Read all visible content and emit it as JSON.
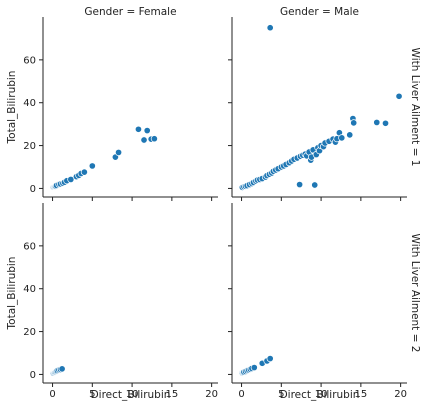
{
  "chart_data": {
    "type": "scatter",
    "facet": {
      "columns": [
        "Gender = Female",
        "Gender = Male"
      ],
      "rows": [
        "With Liver Ailment = 1",
        "With Liver Ailment = 2"
      ]
    },
    "xlabel": "Direct_Bilirubin",
    "ylabel": "Total_Bilirubin",
    "xlim": [
      -1.2,
      20.8
    ],
    "ylim": [
      -4,
      80
    ],
    "xticks": [
      "0",
      "5",
      "10",
      "15",
      "20"
    ],
    "yticks": [
      "0",
      "20",
      "40",
      "60"
    ],
    "marker_color": "#1f77b4",
    "panels": [
      {
        "column": "Gender = Female",
        "row": "With Liver Ailment = 1",
        "points": [
          [
            0.1,
            0.6
          ],
          [
            0.2,
            0.8
          ],
          [
            0.3,
            0.9
          ],
          [
            0.4,
            1.0
          ],
          [
            0.5,
            1.4
          ],
          [
            0.8,
            1.9
          ],
          [
            1.0,
            2.1
          ],
          [
            1.3,
            2.4
          ],
          [
            1.5,
            2.9
          ],
          [
            1.8,
            3.6
          ],
          [
            2.3,
            4.2
          ],
          [
            3.0,
            5.5
          ],
          [
            3.3,
            6.1
          ],
          [
            3.6,
            7.0
          ],
          [
            4.0,
            7.6
          ],
          [
            5.0,
            10.5
          ],
          [
            7.9,
            14.6
          ],
          [
            8.3,
            16.8
          ],
          [
            10.8,
            27.6
          ],
          [
            11.5,
            22.6
          ],
          [
            11.9,
            27.0
          ],
          [
            12.4,
            23.0
          ],
          [
            12.8,
            23.2
          ]
        ]
      },
      {
        "column": "Gender = Male",
        "row": "With Liver Ailment = 1",
        "points": [
          [
            0.1,
            0.5
          ],
          [
            0.3,
            0.8
          ],
          [
            0.5,
            1.0
          ],
          [
            0.7,
            1.3
          ],
          [
            1.0,
            1.8
          ],
          [
            1.3,
            2.3
          ],
          [
            1.5,
            2.8
          ],
          [
            1.8,
            3.4
          ],
          [
            2.0,
            3.9
          ],
          [
            2.3,
            4.2
          ],
          [
            2.6,
            4.6
          ],
          [
            3.0,
            5.3
          ],
          [
            3.2,
            6.0
          ],
          [
            3.5,
            6.6
          ],
          [
            3.6,
            75.0
          ],
          [
            3.8,
            7.2
          ],
          [
            4.0,
            8.0
          ],
          [
            4.3,
            8.6
          ],
          [
            4.6,
            9.2
          ],
          [
            5.0,
            10.0
          ],
          [
            5.3,
            10.5
          ],
          [
            5.6,
            11.2
          ],
          [
            6.0,
            12.0
          ],
          [
            6.3,
            12.8
          ],
          [
            6.6,
            13.6
          ],
          [
            7.0,
            14.2
          ],
          [
            7.3,
            1.8
          ],
          [
            7.4,
            15.0
          ],
          [
            7.7,
            15.5
          ],
          [
            8.0,
            16.0
          ],
          [
            8.2,
            15.2
          ],
          [
            8.5,
            17.0
          ],
          [
            8.7,
            13.2
          ],
          [
            8.8,
            14.6
          ],
          [
            9.0,
            18.0
          ],
          [
            9.2,
            1.6
          ],
          [
            9.4,
            15.8
          ],
          [
            9.6,
            19.0
          ],
          [
            9.8,
            17.6
          ],
          [
            10.0,
            20.0
          ],
          [
            10.3,
            19.5
          ],
          [
            10.5,
            21.2
          ],
          [
            11.0,
            22.0
          ],
          [
            11.5,
            23.0
          ],
          [
            11.8,
            21.6
          ],
          [
            12.0,
            23.2
          ],
          [
            12.3,
            26.0
          ],
          [
            12.6,
            23.6
          ],
          [
            13.6,
            25.0
          ],
          [
            14.0,
            32.6
          ],
          [
            14.1,
            30.6
          ],
          [
            17.0,
            30.8
          ],
          [
            18.1,
            30.4
          ],
          [
            19.8,
            43.0
          ]
        ]
      },
      {
        "column": "Gender = Female",
        "row": "With Liver Ailment = 2",
        "points": [
          [
            0.1,
            0.6
          ],
          [
            0.2,
            0.9
          ],
          [
            0.3,
            1.0
          ],
          [
            0.4,
            1.2
          ],
          [
            0.5,
            1.5
          ],
          [
            0.6,
            1.8
          ],
          [
            0.8,
            2.1
          ],
          [
            1.0,
            2.3
          ],
          [
            1.2,
            2.6
          ]
        ]
      },
      {
        "column": "Gender = Male",
        "row": "With Liver Ailment = 2",
        "points": [
          [
            0.1,
            0.7
          ],
          [
            0.2,
            0.9
          ],
          [
            0.3,
            1.1
          ],
          [
            0.5,
            1.4
          ],
          [
            0.7,
            1.8
          ],
          [
            0.9,
            2.1
          ],
          [
            1.1,
            2.4
          ],
          [
            1.3,
            2.8
          ],
          [
            1.6,
            3.2
          ],
          [
            2.6,
            5.2
          ],
          [
            3.2,
            6.3
          ],
          [
            3.6,
            7.4
          ]
        ]
      }
    ]
  }
}
